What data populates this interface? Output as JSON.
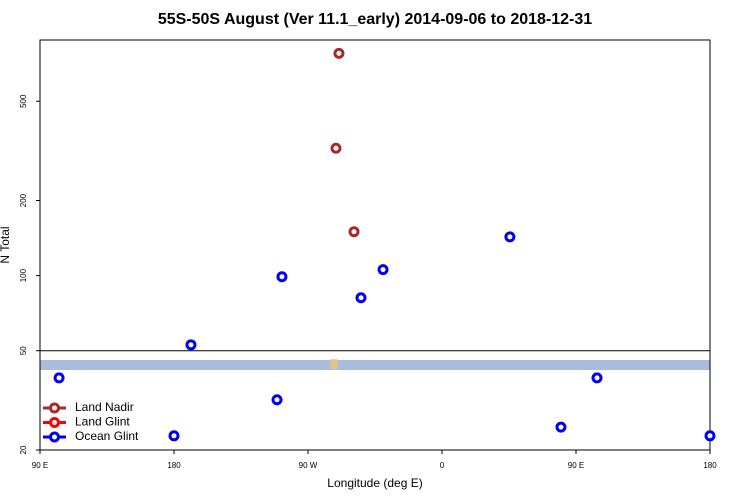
{
  "chart_data": {
    "type": "scatter",
    "title": "55S-50S August (Ver 11.1_early)   2014-09-06 to 2018-12-31",
    "x_label": "Longitude (deg E)",
    "y_label": "N Total",
    "log_y": true,
    "legend": "lower left",
    "reference_line": 50,
    "xlim": [
      90,
      540
    ],
    "xticks": [
      {
        "value": 90,
        "label": "90 E"
      },
      180,
      {
        "value": 270,
        "label": "90 W"
      },
      {
        "value": 360,
        "label": "0"
      },
      {
        "value": 450,
        "label": "90 E"
      },
      {
        "value": 540,
        "label": "180"
      }
    ],
    "ylim": [
      20,
      880
    ],
    "yticks": [
      20,
      50,
      100,
      200,
      500
    ],
    "series": [
      {
        "name": "Land Nadir",
        "color": "#a52a2a",
        "x": [
          290.8,
          288.8,
          300.9
        ],
        "values": [
          778,
          324,
          150
        ]
      },
      {
        "name": "Land Glint",
        "color": "#ff0000",
        "x": [],
        "values": []
      },
      {
        "name": "Ocean Glint",
        "color": "#0000ee",
        "x": [
          102.8,
          180,
          191.4,
          249.2,
          252.5,
          305.6,
          320.4,
          405.6,
          439.9,
          464.1,
          540
        ],
        "values": [
          38.9,
          22.8,
          52.8,
          31.8,
          99,
          81.5,
          105.7,
          143,
          24.7,
          38.9,
          22.8
        ]
      }
    ]
  }
}
